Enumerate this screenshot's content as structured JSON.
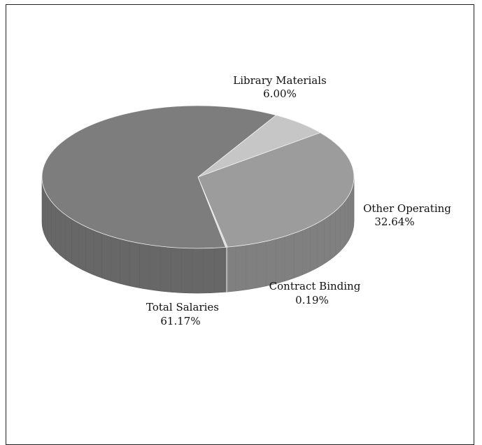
{
  "chart_data": {
    "type": "pie",
    "title": "",
    "slices": [
      {
        "label": "Library Materials",
        "value": 6.0,
        "value_label": "6.00%",
        "color": "#c6c6c6"
      },
      {
        "label": "Other Operating",
        "value": 32.64,
        "value_label": "32.64%",
        "color": "#9c9c9c"
      },
      {
        "label": "Contract Binding",
        "value": 0.19,
        "value_label": "0.19%",
        "color": "#d8d8d8"
      },
      {
        "label": "Total Salaries",
        "value": 61.17,
        "value_label": "61.17%",
        "color": "#7d7d7d"
      }
    ],
    "three_d": true,
    "legend": "none"
  }
}
